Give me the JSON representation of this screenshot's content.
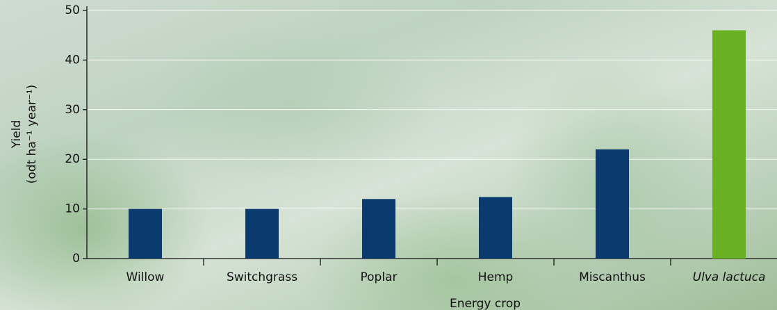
{
  "chart_data": {
    "type": "bar",
    "x_label": "Energy crop",
    "y_label": [
      "Yield",
      "(odt ha⁻¹ year⁻¹)"
    ],
    "categories": [
      "Willow",
      "Switchgrass",
      "Poplar",
      "Hemp",
      "Miscanthus",
      "Ulva lactuca"
    ],
    "values": [
      10,
      10,
      12,
      12.4,
      22,
      46
    ],
    "colors": [
      "#0b3a6e",
      "#0b3a6e",
      "#0b3a6e",
      "#0b3a6e",
      "#0b3a6e",
      "#6ab023"
    ],
    "italic": [
      false,
      false,
      false,
      false,
      false,
      true
    ],
    "ylim": [
      0,
      50
    ],
    "yticks": [
      0,
      10,
      20,
      30,
      40,
      50
    ],
    "grid": true
  }
}
